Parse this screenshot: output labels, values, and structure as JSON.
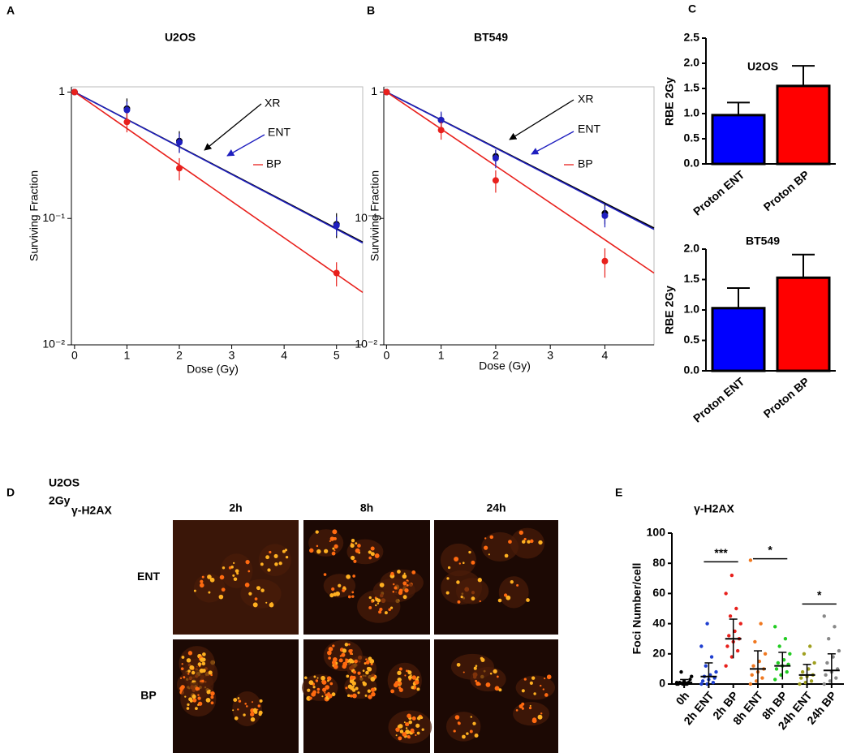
{
  "chart_data": [
    {
      "type": "line",
      "panel": "A",
      "title": "U2OS",
      "xlabel": "Dose (Gy)",
      "ylabel": "Surviving Fraction",
      "ylog": true,
      "x": [
        0,
        1,
        2,
        5
      ],
      "xlim": [
        -0.06,
        5.5
      ],
      "xticks": [
        0,
        1,
        2,
        3,
        4,
        5
      ],
      "ylim": [
        0.01,
        1.1
      ],
      "yticks": [
        1,
        {
          "value": 0.1,
          "label": "10⁻¹"
        },
        {
          "value": 0.01,
          "label": "10⁻²"
        }
      ],
      "fit_x": [
        0,
        5.5
      ],
      "series": [
        {
          "name": "XR",
          "color": "#000000",
          "values": [
            1,
            0.74,
            0.41,
            0.09
          ],
          "errors": [
            0,
            0.15,
            0.08,
            0.02
          ],
          "fit": [
            1,
            0.065
          ]
        },
        {
          "name": "ENT",
          "color": "#1f1fbf",
          "values": [
            1,
            0.72,
            0.4,
            0.088
          ],
          "errors": [
            0,
            0.12,
            0.07,
            0.015
          ],
          "fit": [
            1,
            0.064
          ]
        },
        {
          "name": "BP",
          "color": "#e8201c",
          "values": [
            1,
            0.58,
            0.25,
            0.037
          ],
          "errors": [
            0,
            0.1,
            0.05,
            0.008
          ],
          "fit": [
            1,
            0.026
          ]
        }
      ]
    },
    {
      "type": "line",
      "panel": "B",
      "title": "BT549",
      "xlabel": "Dose (Gy)",
      "ylabel": "Surviving Fraction",
      "ylog": true,
      "x": [
        0,
        1,
        2,
        4
      ],
      "xlim": [
        -0.05,
        4.9
      ],
      "xticks": [
        0,
        1,
        2,
        3,
        4
      ],
      "ylim": [
        0.01,
        1.1
      ],
      "yticks": [
        1,
        {
          "value": 0.1,
          "label": "10⁻¹"
        },
        {
          "value": 0.01,
          "label": "10⁻²"
        }
      ],
      "fit_x": [
        0,
        4.9
      ],
      "series": [
        {
          "name": "XR",
          "color": "#000000",
          "values": [
            1,
            0.6,
            0.31,
            0.11
          ],
          "errors": [
            0,
            0.08,
            0.04,
            0.02
          ],
          "fit": [
            1,
            0.084
          ]
        },
        {
          "name": "ENT",
          "color": "#1f1fbf",
          "values": [
            1,
            0.6,
            0.3,
            0.105
          ],
          "errors": [
            0,
            0.1,
            0.05,
            0.02
          ],
          "fit": [
            1,
            0.082
          ]
        },
        {
          "name": "BP",
          "color": "#e8201c",
          "values": [
            1,
            0.5,
            0.2,
            0.046
          ],
          "errors": [
            0,
            0.08,
            0.04,
            0.012
          ],
          "fit": [
            1,
            0.037
          ]
        }
      ]
    },
    {
      "type": "bar",
      "panel": "C",
      "title": "U2OS",
      "ylabel": "RBE 2Gy",
      "categories": [
        "Proton ENT",
        "Proton BP"
      ],
      "values": [
        0.97,
        1.55
      ],
      "errors": [
        0.25,
        0.4
      ],
      "colors": [
        "#0000ff",
        "#ff0000"
      ],
      "ylim": [
        0,
        2.5
      ],
      "yticks": [
        {
          "value": 0,
          "label": "0.0"
        },
        {
          "value": 0.5,
          "label": "0.5"
        },
        {
          "value": 1,
          "label": "1.0"
        },
        {
          "value": 1.5,
          "label": "1.5"
        },
        {
          "value": 2,
          "label": "2.0"
        },
        {
          "value": 2.5,
          "label": "2.5"
        }
      ]
    },
    {
      "type": "bar",
      "title": "BT549",
      "ylabel": "RBE 2Gy",
      "categories": [
        "Proton ENT",
        "Proton BP"
      ],
      "values": [
        1.03,
        1.53
      ],
      "errors": [
        0.33,
        0.38
      ],
      "colors": [
        "#0000ff",
        "#ff0000"
      ],
      "ylim": [
        0,
        2
      ],
      "yticks": [
        {
          "value": 0,
          "label": "0.0"
        },
        {
          "value": 0.5,
          "label": "0.5"
        },
        {
          "value": 1,
          "label": "1.0"
        },
        {
          "value": 1.5,
          "label": "1.5"
        },
        {
          "value": 2,
          "label": "2.0"
        }
      ]
    },
    {
      "type": "strip",
      "panel": "E",
      "title": "γ-H2AX",
      "ylabel": "Foci Number/cell",
      "categories": [
        "0h",
        "2h ENT",
        "2h BP",
        "8h ENT",
        "8h BP",
        "24h ENT",
        "24h BP"
      ],
      "colors": [
        "#000000",
        "#1f3fd0",
        "#e8201c",
        "#f07820",
        "#22cc22",
        "#a0a020",
        "#888888"
      ],
      "points": [
        [
          0,
          0,
          1,
          0,
          2,
          3,
          1,
          0,
          5,
          8,
          0,
          1
        ],
        [
          0,
          0,
          1,
          2,
          3,
          4,
          5,
          6,
          8,
          12,
          18,
          25,
          40
        ],
        [
          12,
          18,
          22,
          25,
          28,
          30,
          32,
          35,
          40,
          45,
          50,
          60,
          72
        ],
        [
          0,
          2,
          4,
          6,
          8,
          10,
          12,
          15,
          20,
          28,
          40,
          82
        ],
        [
          3,
          6,
          8,
          10,
          12,
          13,
          14,
          16,
          20,
          25,
          30,
          38
        ],
        [
          0,
          1,
          2,
          4,
          5,
          6,
          8,
          10,
          14,
          20,
          25
        ],
        [
          0,
          2,
          4,
          6,
          8,
          10,
          14,
          18,
          22,
          30,
          38,
          45
        ]
      ],
      "means": [
        1,
        5,
        30,
        10,
        12,
        6,
        9
      ],
      "sd": [
        2,
        9,
        13,
        12,
        9,
        7,
        11
      ],
      "ylim": [
        0,
        100
      ],
      "yticks": [
        0,
        20,
        40,
        60,
        80,
        100
      ],
      "annotations": [
        {
          "text": "***",
          "y": 81,
          "span": [
            "2h ENT",
            "2h BP"
          ]
        },
        {
          "text": "*",
          "y": 83,
          "span": [
            "8h ENT",
            "8h BP"
          ]
        },
        {
          "text": "*",
          "y": 53,
          "span": [
            "24h ENT",
            "24h BP"
          ]
        }
      ]
    }
  ],
  "panel_d": {
    "panel": "D",
    "cell_line": "U2OS",
    "dose": "2Gy",
    "stain": "γ-H2AX",
    "columns": [
      "2h",
      "8h",
      "24h"
    ],
    "rows": [
      "ENT",
      "BP"
    ]
  }
}
